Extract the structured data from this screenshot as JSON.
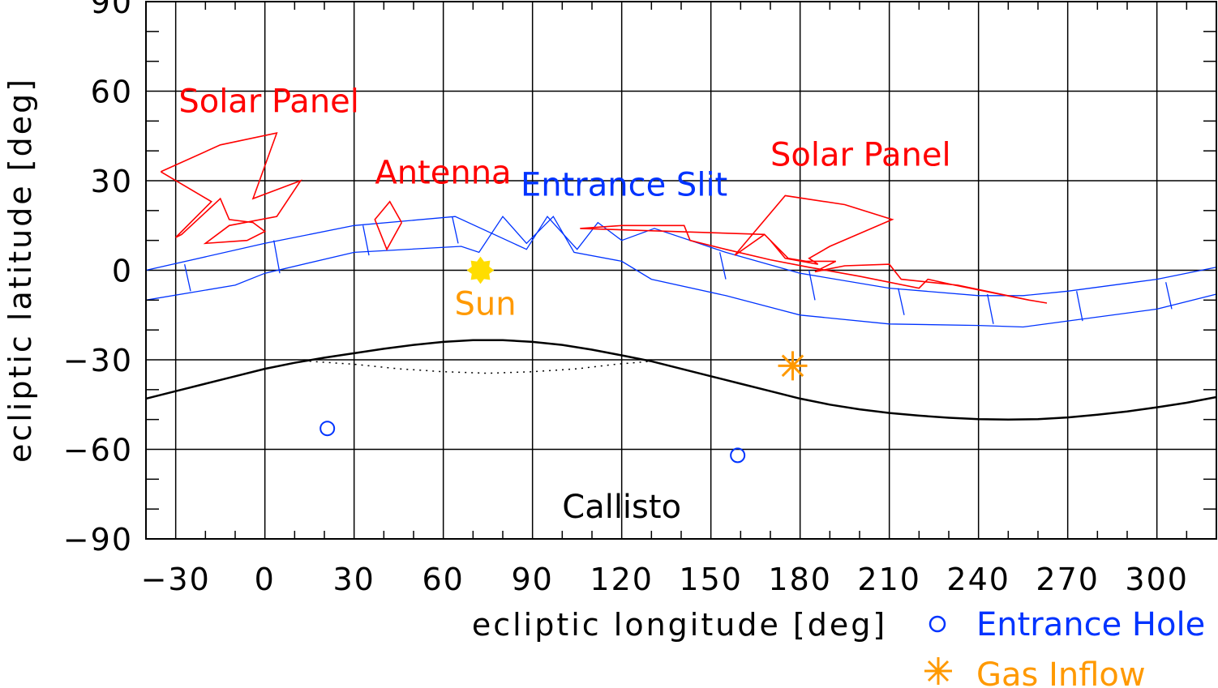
{
  "chart_data": {
    "type": "line",
    "xlabel": "ecliptic longitude [deg]",
    "ylabel": "ecliptic latitude [deg]",
    "xlim": [
      -40,
      320
    ],
    "ylim": [
      -90,
      90
    ],
    "grid": true,
    "x_ticks": [
      -30,
      0,
      30,
      60,
      90,
      120,
      150,
      180,
      210,
      240,
      270,
      300
    ],
    "y_ticks": [
      -90,
      -60,
      -30,
      0,
      30,
      60,
      90
    ],
    "x_tick_labels": [
      "−30",
      "0",
      "30",
      "60",
      "90",
      "120",
      "150",
      "180",
      "210",
      "240",
      "270",
      "300"
    ],
    "y_tick_labels": [
      "−90",
      "−60",
      "−30",
      "0",
      "30",
      "60",
      "90"
    ],
    "sun": {
      "x": 72.5,
      "y": 0,
      "label": "Sun",
      "color": "#ffdd00",
      "label_color": "#ff9900"
    },
    "gas_inflow": {
      "x": 177.5,
      "y": -32,
      "color": "#ff9900"
    },
    "entrance_holes": [
      {
        "x": 21,
        "y": -53
      },
      {
        "x": 159,
        "y": -62
      }
    ],
    "callisto": {
      "label": "Callisto",
      "solid_curve": [
        [
          -40,
          -43
        ],
        [
          -30,
          -40.5
        ],
        [
          -20,
          -38
        ],
        [
          -10,
          -35.5
        ],
        [
          0,
          -33
        ],
        [
          10,
          -31
        ],
        [
          20,
          -29.3
        ],
        [
          30,
          -27.8
        ],
        [
          40,
          -26.3
        ],
        [
          50,
          -25
        ],
        [
          60,
          -24
        ],
        [
          70,
          -23.4
        ],
        [
          80,
          -23.4
        ],
        [
          90,
          -24
        ],
        [
          100,
          -25
        ],
        [
          110,
          -26.6
        ],
        [
          120,
          -28.5
        ],
        [
          130,
          -30.5
        ],
        [
          140,
          -33
        ],
        [
          150,
          -35.5
        ],
        [
          160,
          -38
        ],
        [
          170,
          -40.5
        ],
        [
          180,
          -43
        ],
        [
          190,
          -45
        ],
        [
          200,
          -46.6
        ],
        [
          210,
          -47.8
        ],
        [
          220,
          -48.7
        ],
        [
          230,
          -49.4
        ],
        [
          240,
          -49.9
        ],
        [
          250,
          -50
        ],
        [
          260,
          -49.9
        ],
        [
          270,
          -49.3
        ],
        [
          280,
          -48.4
        ],
        [
          290,
          -47.3
        ],
        [
          300,
          -45.9
        ],
        [
          310,
          -44.4
        ],
        [
          320,
          -42.5
        ]
      ],
      "dotted_curve": [
        [
          15,
          -30.5
        ],
        [
          30,
          -31.5
        ],
        [
          45,
          -33
        ],
        [
          60,
          -34
        ],
        [
          75,
          -34.5
        ],
        [
          90,
          -34
        ],
        [
          105,
          -33
        ],
        [
          118,
          -31.5
        ],
        [
          130,
          -30.5
        ]
      ]
    },
    "entrance_slit": {
      "upper": [
        [
          -40,
          0
        ],
        [
          0,
          9
        ],
        [
          30,
          15
        ],
        [
          64,
          18
        ],
        [
          88,
          7
        ],
        [
          95,
          18
        ],
        [
          105,
          7
        ],
        [
          112,
          16
        ],
        [
          120,
          10
        ],
        [
          131,
          14
        ],
        [
          155,
          6
        ],
        [
          180,
          -1
        ],
        [
          210,
          -6
        ],
        [
          240,
          -8.5
        ],
        [
          255,
          -8.5
        ],
        [
          270,
          -7
        ],
        [
          300,
          -3
        ],
        [
          320,
          1
        ]
      ],
      "lower": [
        [
          -40,
          -10
        ],
        [
          -10,
          -5
        ],
        [
          0,
          -1
        ],
        [
          30,
          6
        ],
        [
          66,
          8
        ],
        [
          72,
          6
        ],
        [
          80,
          18
        ],
        [
          88,
          9
        ],
        [
          97,
          18
        ],
        [
          104,
          6
        ],
        [
          120,
          3
        ],
        [
          130,
          -3
        ],
        [
          155,
          -8.5
        ],
        [
          180,
          -15
        ],
        [
          210,
          -18
        ],
        [
          240,
          -18.5
        ],
        [
          255,
          -19
        ],
        [
          270,
          -17
        ],
        [
          300,
          -13
        ],
        [
          320,
          -8
        ]
      ],
      "ticks": [
        [
          -27,
          2,
          -7
        ],
        [
          3,
          10,
          -1
        ],
        [
          33,
          15,
          5
        ],
        [
          63,
          18,
          9
        ],
        [
          153,
          6,
          -3
        ],
        [
          183,
          0,
          -10
        ],
        [
          213,
          -6,
          -15
        ],
        [
          243,
          -8,
          -18
        ],
        [
          273,
          -7,
          -17
        ],
        [
          303,
          -4,
          -13
        ]
      ]
    },
    "solar_panel_left": [
      [
        -35,
        33
      ],
      [
        -15,
        42
      ],
      [
        4,
        46
      ],
      [
        -4,
        24
      ],
      [
        12,
        30
      ],
      [
        4,
        18
      ],
      [
        -12,
        15
      ],
      [
        -20,
        9
      ],
      [
        -6,
        10
      ],
      [
        0,
        13
      ],
      [
        -4,
        16
      ],
      [
        -12,
        17
      ],
      [
        -15,
        24
      ],
      [
        -28,
        12
      ],
      [
        -30,
        11
      ],
      [
        -18,
        23
      ],
      [
        -35,
        33
      ]
    ],
    "antenna": [
      [
        46,
        16
      ],
      [
        42,
        23
      ],
      [
        37,
        17
      ],
      [
        41,
        7
      ],
      [
        46,
        16
      ]
    ],
    "solar_panel_right": [
      [
        106,
        14
      ],
      [
        120,
        15
      ],
      [
        141,
        15
      ],
      [
        143,
        10
      ],
      [
        155,
        7
      ],
      [
        170,
        3.5
      ],
      [
        183,
        1
      ],
      [
        200,
        -2
      ],
      [
        220,
        -6
      ],
      [
        223,
        -3
      ],
      [
        232,
        -5
      ],
      [
        257,
        -10
      ],
      [
        263,
        -11
      ],
      [
        257,
        -10
      ],
      [
        233,
        -5
      ],
      [
        214,
        -3
      ],
      [
        210,
        2
      ],
      [
        195,
        1.5
      ],
      [
        185,
        -0.5
      ],
      [
        192,
        3
      ],
      [
        182,
        3
      ],
      [
        176,
        4
      ],
      [
        168,
        12
      ],
      [
        158,
        5
      ],
      [
        175,
        25
      ],
      [
        195,
        22
      ],
      [
        211,
        17
      ],
      [
        190,
        8
      ],
      [
        183,
        4
      ],
      [
        186,
        2
      ],
      [
        175,
        4
      ],
      [
        170,
        10
      ],
      [
        168,
        12
      ],
      [
        106,
        14
      ]
    ],
    "annotations": [
      {
        "text": "Solar Panel",
        "x": -29,
        "y": 53,
        "color": "#ff0000"
      },
      {
        "text": "Antenna",
        "x": 37,
        "y": 29,
        "color": "#ff0000"
      },
      {
        "text": "Entrance Slit",
        "x": 86,
        "y": 25,
        "color": "#0033ff"
      },
      {
        "text": "Solar Panel",
        "x": 170,
        "y": 35,
        "color": "#ff0000"
      }
    ],
    "legend": [
      {
        "label": "Entrance Hole",
        "marker": "circle",
        "color": "#0033ff"
      },
      {
        "label": "Gas Inflow",
        "marker": "asterisk",
        "color": "#ff9900"
      }
    ],
    "colors": {
      "panel": "#ff0000",
      "slit": "#0033ff",
      "sun": "#ffdd00",
      "orange": "#ff9900",
      "axis": "#000000"
    }
  }
}
